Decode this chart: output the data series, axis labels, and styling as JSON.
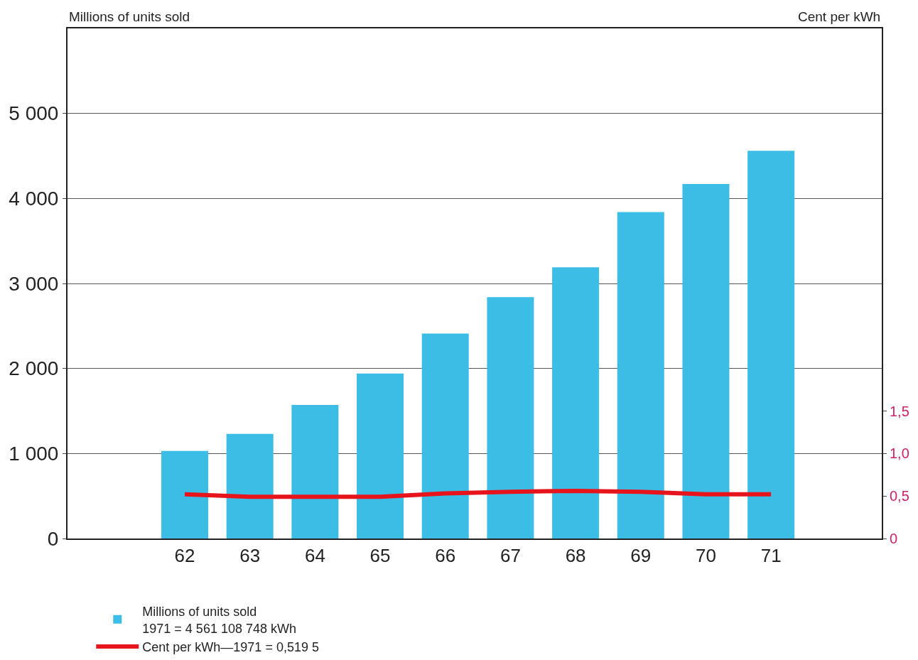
{
  "chart_data": {
    "type": "bar",
    "ylabel": "Millions of units sold",
    "y2label": "Cent per kWh",
    "categories": [
      "62",
      "63",
      "64",
      "65",
      "66",
      "67",
      "68",
      "69",
      "70",
      "71"
    ],
    "series": [
      {
        "name": "Millions of units sold\n1971 = 4 561 108 748 kWh",
        "color": "#3bbde6",
        "values": [
          1030,
          1230,
          1570,
          1940,
          2410,
          2840,
          3190,
          3840,
          4170,
          4560
        ]
      },
      {
        "name": "Cent per kWh—1971 = 0,519 5",
        "type": "line",
        "axis": "y2",
        "color": "#e8141c",
        "values": [
          0.52,
          0.49,
          0.49,
          0.49,
          0.53,
          0.55,
          0.56,
          0.55,
          0.52,
          0.52
        ]
      }
    ],
    "ylim": [
      0,
      6000
    ],
    "yticks": [
      0,
      {
        "value": 1000,
        "label": "1 000"
      },
      {
        "value": 2000,
        "label": "2 000"
      },
      {
        "value": 3000,
        "label": "3 000"
      },
      {
        "value": 4000,
        "label": "4 000"
      },
      {
        "value": 5000,
        "label": "5 000"
      }
    ],
    "y2lim": [
      0,
      6.0
    ],
    "y2ticks": [
      0,
      {
        "value": 0.5,
        "label": "0,5"
      },
      {
        "value": 1.0,
        "label": "1,0"
      },
      {
        "value": 1.5,
        "label": "1,5"
      }
    ],
    "grid": "y",
    "legend": "bottom",
    "marker": "none",
    "line_style": "solid"
  }
}
